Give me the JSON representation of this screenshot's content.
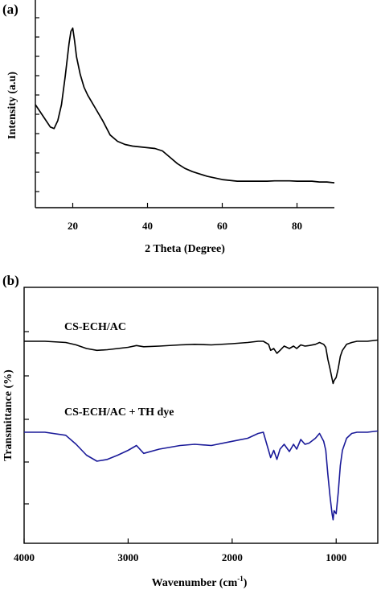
{
  "chart_data": [
    {
      "panel_label": "(a)",
      "type": "line",
      "xlabel": "2 Theta (Degree)",
      "ylabel": "Intensity (a.u)",
      "xlim": [
        10,
        90
      ],
      "xticks": [
        20,
        40,
        60,
        80
      ],
      "grid": false,
      "series": [
        {
          "color": "#000000",
          "x": [
            10,
            12,
            14,
            15,
            16,
            17,
            18,
            19,
            19.5,
            20,
            20.5,
            21,
            22,
            23,
            24,
            26,
            28,
            30,
            32,
            34,
            36,
            38,
            40,
            42,
            44,
            46,
            48,
            50,
            52,
            54,
            56,
            58,
            60,
            62,
            64,
            66,
            68,
            70,
            72,
            74,
            76,
            78,
            80,
            82,
            84,
            86,
            88,
            90
          ],
          "y": [
            0.52,
            0.45,
            0.38,
            0.37,
            0.42,
            0.52,
            0.7,
            0.9,
            0.98,
            1.0,
            0.92,
            0.82,
            0.71,
            0.63,
            0.58,
            0.5,
            0.42,
            0.33,
            0.29,
            0.27,
            0.26,
            0.255,
            0.25,
            0.245,
            0.23,
            0.19,
            0.15,
            0.12,
            0.1,
            0.085,
            0.07,
            0.06,
            0.05,
            0.045,
            0.04,
            0.04,
            0.04,
            0.04,
            0.04,
            0.042,
            0.042,
            0.042,
            0.04,
            0.04,
            0.04,
            0.035,
            0.035,
            0.03
          ]
        }
      ]
    },
    {
      "panel_label": "(b)",
      "type": "line",
      "xlabel": "Wavenumber (cm",
      "xlabel_sup": "-1",
      "xlabel_close": ")",
      "ylabel": "Transmittance (%)",
      "xlim": [
        4000,
        600
      ],
      "xticks": [
        4000,
        3000,
        2000,
        1000
      ],
      "grid": false,
      "series": [
        {
          "name": "CS-ECH/AC",
          "color": "#000000",
          "x": [
            4000,
            3800,
            3600,
            3500,
            3400,
            3300,
            3200,
            3100,
            3000,
            2920,
            2850,
            2700,
            2500,
            2360,
            2200,
            2000,
            1850,
            1750,
            1700,
            1650,
            1630,
            1600,
            1570,
            1540,
            1500,
            1450,
            1410,
            1380,
            1340,
            1300,
            1260,
            1200,
            1160,
            1120,
            1100,
            1080,
            1060,
            1040,
            1030,
            1020,
            1000,
            980,
            960,
            940,
            900,
            850,
            800,
            700,
            600
          ],
          "y": [
            0.0,
            0.0,
            -0.02,
            -0.06,
            -0.12,
            -0.15,
            -0.14,
            -0.12,
            -0.1,
            -0.07,
            -0.09,
            -0.08,
            -0.06,
            -0.05,
            -0.06,
            -0.04,
            -0.02,
            0.0,
            0.0,
            -0.05,
            -0.15,
            -0.12,
            -0.2,
            -0.15,
            -0.08,
            -0.12,
            -0.08,
            -0.12,
            -0.06,
            -0.08,
            -0.07,
            -0.05,
            -0.02,
            -0.05,
            -0.1,
            -0.3,
            -0.45,
            -0.62,
            -0.7,
            -0.65,
            -0.6,
            -0.45,
            -0.25,
            -0.15,
            -0.05,
            -0.02,
            0.0,
            0.0,
            0.02
          ]
        },
        {
          "name": "CS-ECH/AC + TH dye",
          "color": "#1a1a99",
          "x": [
            4000,
            3800,
            3600,
            3500,
            3400,
            3300,
            3200,
            3100,
            3000,
            2920,
            2850,
            2700,
            2500,
            2360,
            2200,
            2000,
            1850,
            1750,
            1700,
            1650,
            1630,
            1600,
            1570,
            1540,
            1500,
            1450,
            1410,
            1380,
            1340,
            1300,
            1260,
            1200,
            1160,
            1120,
            1100,
            1080,
            1060,
            1040,
            1030,
            1020,
            1000,
            980,
            960,
            940,
            900,
            850,
            800,
            700,
            600
          ],
          "y": [
            0.0,
            0.0,
            -0.05,
            -0.2,
            -0.38,
            -0.48,
            -0.45,
            -0.38,
            -0.3,
            -0.22,
            -0.35,
            -0.28,
            -0.22,
            -0.2,
            -0.22,
            -0.15,
            -0.1,
            -0.02,
            0.0,
            -0.3,
            -0.42,
            -0.3,
            -0.45,
            -0.28,
            -0.2,
            -0.32,
            -0.2,
            -0.28,
            -0.12,
            -0.2,
            -0.18,
            -0.1,
            -0.02,
            -0.15,
            -0.3,
            -0.7,
            -1.05,
            -1.35,
            -1.45,
            -1.3,
            -1.35,
            -1.0,
            -0.55,
            -0.3,
            -0.1,
            -0.02,
            0.0,
            0.0,
            0.02
          ]
        }
      ]
    }
  ]
}
